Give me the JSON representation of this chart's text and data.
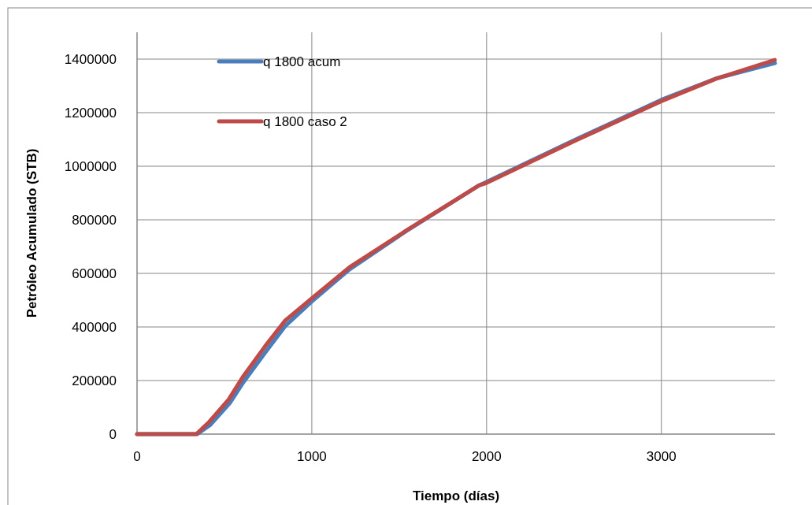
{
  "chart_data": {
    "type": "line",
    "xlabel": "Tiempo (días)",
    "ylabel": "Petróleo Acumulado (STB)",
    "xlim": [
      0,
      3650
    ],
    "xticks": [
      0,
      1000,
      2000,
      3000
    ],
    "ylim": [
      0,
      1500000
    ],
    "yticks": [
      0,
      200000,
      400000,
      600000,
      800000,
      1000000,
      1200000,
      1400000
    ],
    "grid": true,
    "legend": "top left",
    "marker": "none",
    "line_style": "solid",
    "series": [
      {
        "name": "q 1800 acum",
        "color": "#4a7ebb",
        "x": [
          0,
          345,
          420,
          530,
          610,
          740,
          850,
          1000,
          1216,
          1538,
          1956,
          2510,
          3000,
          3314,
          3650
        ],
        "values": [
          0,
          0,
          35000,
          115000,
          195000,
          310000,
          405000,
          495000,
          615000,
          757000,
          928000,
          1100000,
          1248000,
          1328000,
          1385000
        ]
      },
      {
        "name": "q 1800 caso 2",
        "color": "#be4b48",
        "x": [
          0,
          339,
          412,
          524,
          605,
          734,
          846,
          1000,
          1216,
          1538,
          1956,
          2001,
          2510,
          3000,
          3314,
          3649
        ],
        "values": [
          0,
          0,
          45000,
          129000,
          213000,
          329000,
          423000,
          507000,
          623000,
          759000,
          928000,
          938000,
          1096000,
          1243000,
          1327000,
          1397000
        ]
      }
    ]
  }
}
